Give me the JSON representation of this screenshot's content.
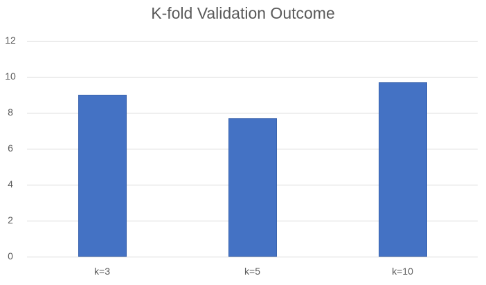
{
  "chart_data": {
    "type": "bar",
    "title": "K-fold Validation Outcome",
    "categories": [
      "k=3",
      "k=5",
      "k=10"
    ],
    "values": [
      9.0,
      7.7,
      9.7
    ],
    "xlabel": "",
    "ylabel": "",
    "ylim": [
      0,
      12
    ],
    "yticks": [
      0,
      2,
      4,
      6,
      8,
      10,
      12
    ],
    "grid": true,
    "legend": false,
    "colors": {
      "bar_fill": "#4472C4",
      "bar_border": "#3B64AE",
      "gridline": "#D9D9D9",
      "axis_line": "#D9D9D9",
      "title_text": "#595959",
      "tick_text": "#595959",
      "background": "#FFFFFF"
    }
  }
}
